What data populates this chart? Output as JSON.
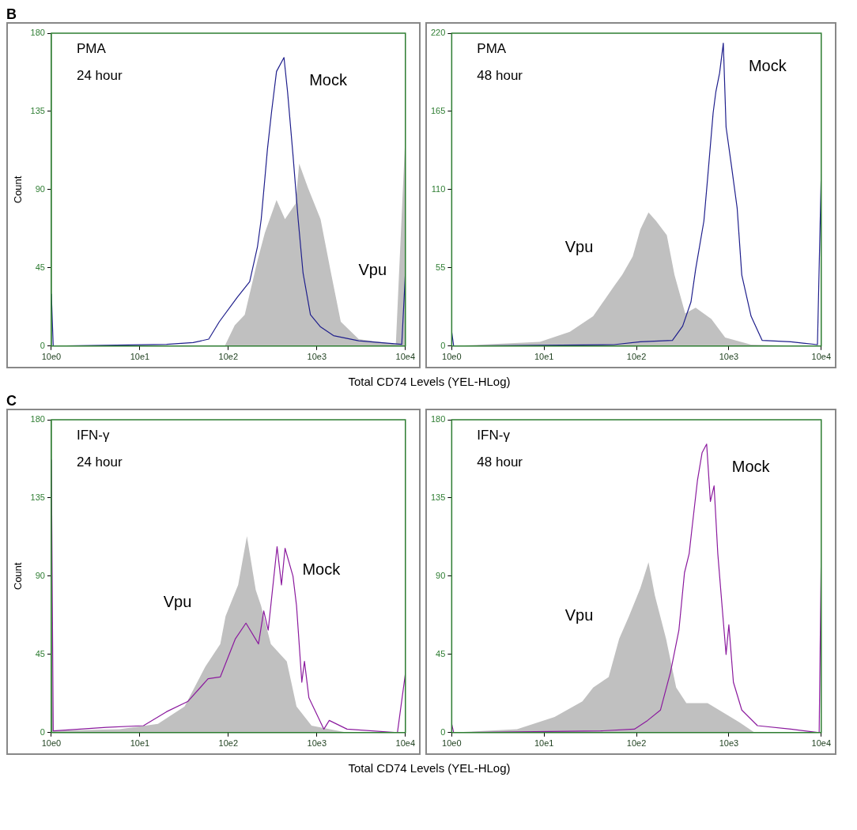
{
  "chart_data": [
    {
      "type": "line",
      "title": "B",
      "ylabel": "Count",
      "xlabel": "Total CD74 Levels (YEL-HLog)",
      "log": "x",
      "grid": false,
      "legend": false,
      "marker": "none",
      "xlim": [
        10,
        100000
      ],
      "xticks": [
        {
          "value": 10,
          "label": "10e0"
        },
        {
          "value": 100,
          "label": "10e1"
        },
        {
          "value": 1000,
          "label": "10e2"
        },
        {
          "value": 10000,
          "label": "10e3"
        },
        {
          "value": 100000,
          "label": "10e4"
        }
      ],
      "ylim": [
        0,
        180
      ],
      "yticks": [
        0,
        45,
        90,
        135,
        180
      ],
      "annotations": [
        "PMA",
        "24 hour"
      ],
      "series": [
        {
          "name": "Vpu",
          "type": "area",
          "color": "#c0c0c0",
          "x": [
            910,
            1180,
            1530,
            2130,
            2580,
            3500,
            4360,
            5750,
            6310,
            7940,
            11000,
            14450,
            18620,
            29700,
            78000,
            100000
          ],
          "values": [
            0,
            12,
            18,
            49,
            65,
            84,
            73,
            82,
            105,
            91,
            73,
            42,
            14,
            4,
            1,
            122
          ]
        },
        {
          "name": "Mock",
          "type": "line",
          "color": "#1f1f8c",
          "x": [
            10,
            10.5,
            200,
            400,
            600,
            790,
            1260,
            1740,
            2130,
            2350,
            2580,
            2760,
            3080,
            3500,
            4250,
            4670,
            5370,
            6140,
            6980,
            8460,
            11000,
            15400,
            29700,
            91000,
            100000
          ],
          "values": [
            30,
            0,
            1,
            2,
            4,
            14,
            28,
            37,
            57,
            73,
            96,
            113,
            135,
            158,
            166,
            146,
            110,
            73,
            42,
            18,
            11,
            6,
            3,
            1,
            42
          ]
        }
      ]
    },
    {
      "type": "line",
      "log": "x",
      "grid": false,
      "legend": false,
      "marker": "none",
      "xlim": [
        10,
        100000
      ],
      "xticks": [
        {
          "value": 10,
          "label": "10e0"
        },
        {
          "value": 100,
          "label": "10e1"
        },
        {
          "value": 1000,
          "label": "10e2"
        },
        {
          "value": 10000,
          "label": "10e3"
        },
        {
          "value": 100000,
          "label": "10e4"
        }
      ],
      "ylim": [
        0,
        220
      ],
      "yticks": [
        0,
        55,
        110,
        165,
        220
      ],
      "annotations": [
        "PMA",
        "48 hour"
      ],
      "series": [
        {
          "name": "Vpu",
          "type": "area",
          "color": "#c0c0c0",
          "x": [
            10,
            90,
            190,
            340,
            570,
            700,
            910,
            1100,
            1350,
            1630,
            2130,
            2580,
            3370,
            4370,
            6460,
            9120,
            17400,
            100000
          ],
          "values": [
            0,
            3,
            10,
            21,
            42,
            50,
            63,
            82,
            94,
            88,
            78,
            50,
            23,
            27,
            19,
            6,
            1,
            0
          ]
        },
        {
          "name": "Mock",
          "type": "line",
          "color": "#1f1f8c",
          "x": [
            10,
            10.5,
            570,
            1100,
            2450,
            3160,
            3890,
            4370,
            5370,
            5890,
            6760,
            7240,
            7940,
            8710,
            9330,
            10710,
            12300,
            13800,
            17400,
            22900,
            46800,
            91000,
            100000
          ],
          "values": [
            10,
            0,
            1,
            3,
            4,
            14,
            31,
            54,
            88,
            118,
            164,
            179,
            192,
            213,
            154,
            126,
            97,
            50,
            21,
            4,
            3,
            1,
            121
          ]
        }
      ]
    },
    {
      "type": "line",
      "title": "C",
      "ylabel": "Count",
      "xlabel": "Total CD74 Levels (YEL-HLog)",
      "log": "x",
      "grid": false,
      "legend": false,
      "marker": "none",
      "xlim": [
        10,
        100000
      ],
      "xticks": [
        {
          "value": 10,
          "label": "10e0"
        },
        {
          "value": 100,
          "label": "10e1"
        },
        {
          "value": 1000,
          "label": "10e2"
        },
        {
          "value": 10000,
          "label": "10e3"
        },
        {
          "value": 100000,
          "label": "10e4"
        }
      ],
      "ylim": [
        0,
        180
      ],
      "yticks": [
        0,
        45,
        90,
        135,
        180
      ],
      "annotations": [
        "IFN-γ",
        "24 hour"
      ],
      "series": [
        {
          "name": "Vpu",
          "type": "area",
          "color": "#c0c0c0",
          "x": [
            10,
            10.5,
            59,
            160,
            320,
            550,
            810,
            930,
            1290,
            1620,
            2040,
            2340,
            3020,
            4570,
            5890,
            8710,
            21900,
            100000
          ],
          "values": [
            66,
            1,
            2,
            5,
            15,
            38,
            51,
            67,
            85,
            113,
            82,
            73,
            51,
            41,
            15,
            4,
            0,
            0
          ]
        },
        {
          "name": "Mock",
          "type": "line",
          "color": "#8b1a9e",
          "x": [
            10,
            10.5,
            42,
            110,
            200,
            350,
            590,
            810,
            1200,
            1580,
            2190,
            2510,
            2820,
            3550,
            3980,
            4370,
            5370,
            5890,
            6760,
            7240,
            8130,
            12000,
            13800,
            21900,
            81300,
            100000
          ],
          "values": [
            157,
            1,
            3,
            4,
            12,
            18,
            31,
            32,
            54,
            63,
            51,
            70,
            59,
            107,
            85,
            106,
            90,
            73,
            29,
            41,
            20,
            2,
            7,
            2,
            0,
            34
          ]
        }
      ]
    },
    {
      "type": "line",
      "log": "x",
      "grid": false,
      "legend": false,
      "marker": "none",
      "xlim": [
        10,
        100000
      ],
      "xticks": [
        {
          "value": 10,
          "label": "10e0"
        },
        {
          "value": 100,
          "label": "10e1"
        },
        {
          "value": 1000,
          "label": "10e2"
        },
        {
          "value": 10000,
          "label": "10e3"
        },
        {
          "value": 100000,
          "label": "10e4"
        }
      ],
      "ylim": [
        0,
        180
      ],
      "yticks": [
        0,
        45,
        90,
        135,
        180
      ],
      "annotations": [
        "IFN-γ",
        "48 hour"
      ],
      "series": [
        {
          "name": "Vpu",
          "type": "area",
          "color": "#c0c0c0",
          "x": [
            10,
            51,
            130,
            260,
            340,
            500,
            650,
            830,
            1100,
            1350,
            1580,
            2090,
            2690,
            3470,
            5890,
            12900,
            19000,
            100000
          ],
          "values": [
            0,
            2,
            9,
            18,
            26,
            32,
            54,
            67,
            83,
            98,
            79,
            54,
            26,
            17,
            17,
            6,
            0,
            0
          ]
        },
        {
          "name": "Mock",
          "type": "line",
          "color": "#8b1a9e",
          "x": [
            10,
            10.5,
            410,
            950,
            1320,
            1820,
            2340,
            2880,
            3310,
            3720,
            3980,
            4570,
            5130,
            5750,
            6310,
            6920,
            7590,
            8710,
            9330,
            10000,
            11200,
            13800,
            20400,
            46800,
            95000,
            100000
          ],
          "values": [
            5,
            0,
            1,
            2,
            7,
            13,
            35,
            59,
            92,
            103,
            117,
            145,
            161,
            166,
            133,
            142,
            103,
            64,
            45,
            62,
            29,
            13,
            4,
            2,
            0,
            103
          ]
        }
      ]
    }
  ]
}
